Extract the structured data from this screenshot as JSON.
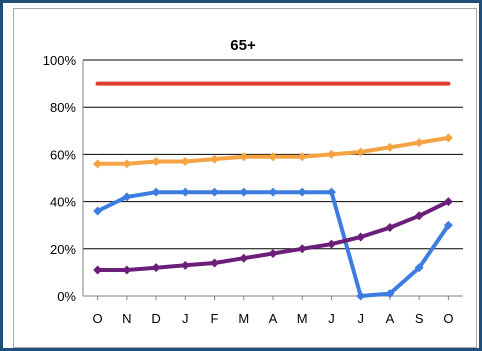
{
  "chart_data": {
    "type": "line",
    "title": "65+",
    "xlabel": "",
    "ylabel": "",
    "categories": [
      "O",
      "N",
      "D",
      "J",
      "F",
      "M",
      "A",
      "M",
      "J",
      "J",
      "A",
      "S",
      "O"
    ],
    "y_tick_labels": [
      "0%",
      "20%",
      "40%",
      "60%",
      "80%",
      "100%"
    ],
    "ylim": [
      0,
      100
    ],
    "y_unit": "%",
    "grid": true,
    "legend": "none",
    "series": [
      {
        "color": "#e03c31",
        "marker": "none",
        "values": [
          90,
          90,
          90,
          90,
          90,
          90,
          90,
          90,
          90,
          90,
          90,
          90,
          90
        ]
      },
      {
        "color": "#f5a443",
        "marker": "diamond",
        "values": [
          56,
          56,
          57,
          57,
          58,
          59,
          59,
          59,
          60,
          61,
          63,
          65,
          67
        ]
      },
      {
        "color": "#3d7de0",
        "marker": "diamond",
        "values": [
          36,
          42,
          44,
          44,
          44,
          44,
          44,
          44,
          44,
          0,
          1,
          12,
          30
        ]
      },
      {
        "color": "#6b1f7a",
        "marker": "diamond",
        "values": [
          11,
          11,
          12,
          13,
          14,
          16,
          18,
          20,
          22,
          25,
          29,
          34,
          40
        ]
      }
    ]
  }
}
